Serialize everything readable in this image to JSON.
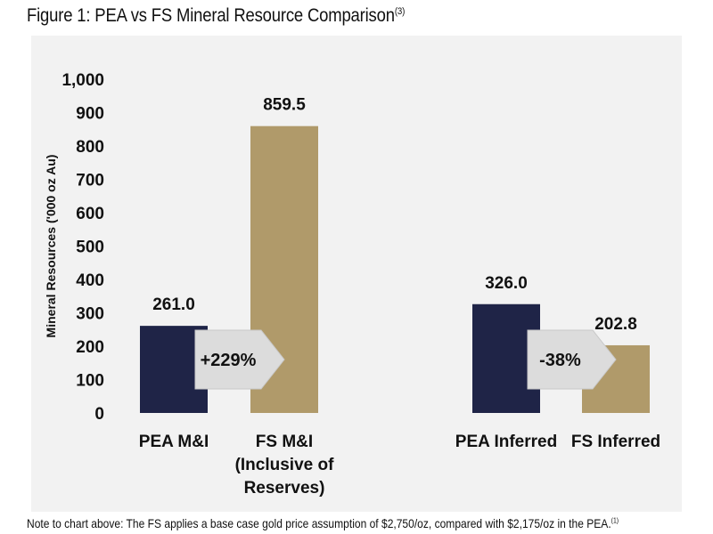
{
  "figure": {
    "title": "Figure 1: PEA vs FS Mineral Resource Comparison",
    "title_sup": "(3)"
  },
  "footnote": {
    "text": "Note to chart above: The FS applies a base case gold price assumption of $2,750/oz, compared with $2,175/oz in the PEA.",
    "sup": "(1)"
  },
  "colors": {
    "pea": "#1f2447",
    "fs": "#b09a6a",
    "arrow": "#dcdcdc",
    "panel": "#f2f2f2"
  },
  "chart_data": {
    "type": "bar",
    "ylabel": "Mineral Resources  ('000 oz Au)",
    "ylim": [
      0,
      1000
    ],
    "yticks": [
      0,
      100,
      200,
      300,
      400,
      500,
      600,
      700,
      800,
      900,
      1000
    ],
    "ytick_labels": [
      "0",
      "100",
      "200",
      "300",
      "400",
      "500",
      "600",
      "700",
      "800",
      "900",
      "1,000"
    ],
    "grid": false,
    "bars": [
      {
        "category_lines": [
          "PEA M&I"
        ],
        "value": 261.0,
        "label": "261.0",
        "kind": "pea"
      },
      {
        "category_lines": [
          "FS M&I",
          "(Inclusive of",
          "Reserves)"
        ],
        "value": 859.5,
        "label": "859.5",
        "kind": "fs"
      },
      {
        "category_lines": [
          "PEA Inferred"
        ],
        "value": 326.0,
        "label": "326.0",
        "kind": "pea"
      },
      {
        "category_lines": [
          "FS Inferred"
        ],
        "value": 202.8,
        "label": "202.8",
        "kind": "fs"
      }
    ],
    "annotations": [
      {
        "text": "+229%",
        "from_bar": 0,
        "to_bar": 1
      },
      {
        "text": "-38%",
        "from_bar": 2,
        "to_bar": 3
      }
    ]
  }
}
